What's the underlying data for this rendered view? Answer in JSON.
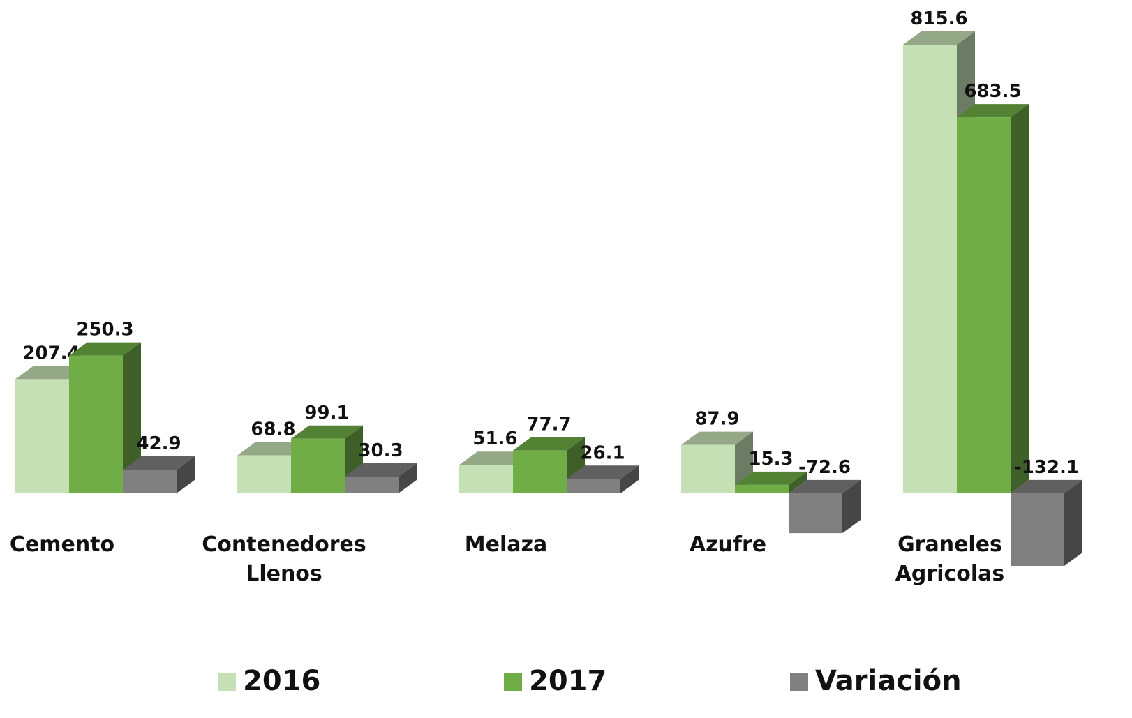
{
  "chart_data": {
    "type": "bar3d",
    "categories": [
      "Cemento",
      "Contenedores Llenos",
      "Melaza",
      "Azufre",
      "Graneles Agricolas"
    ],
    "series": [
      {
        "name": "2016",
        "color": "#c5e0b4",
        "values": [
          207.4,
          68.8,
          51.6,
          87.9,
          815.6
        ]
      },
      {
        "name": "2017",
        "color": "#70ad47",
        "values": [
          250.3,
          99.1,
          77.7,
          15.3,
          683.5
        ]
      },
      {
        "name": "Variación",
        "color": "#808080",
        "values": [
          42.9,
          30.3,
          26.1,
          -72.6,
          -132.1
        ]
      }
    ],
    "legend": "bottom"
  }
}
